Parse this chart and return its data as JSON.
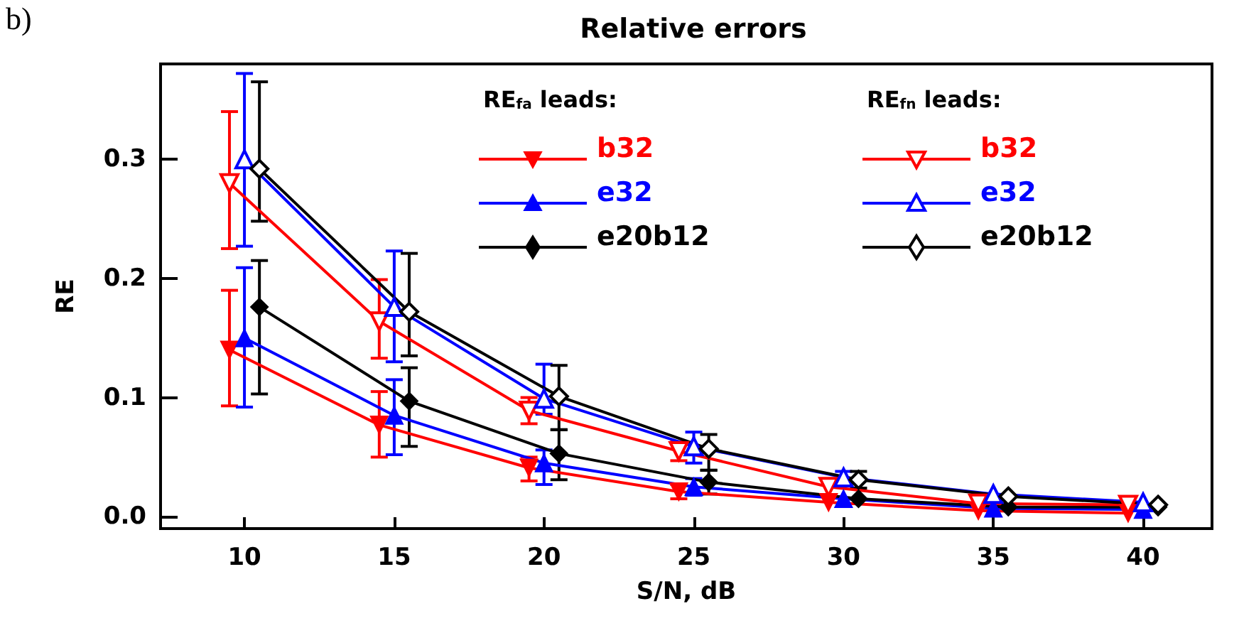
{
  "chart_data": {
    "type": "line",
    "title": "Relative errors",
    "xlabel": "S/N, dB",
    "ylabel": "RE",
    "annotations": [
      "b)",
      "RE$_{fa}$ leads:",
      "RE$_{fn}$ leads:"
    ],
    "xlim": [
      7.2,
      42.3
    ],
    "xticks": [
      10,
      15,
      20,
      25,
      30,
      35,
      40
    ],
    "ylim": [
      -0.01,
      0.38
    ],
    "yticks": [
      {
        "value": 0,
        "label": "0.0"
      },
      {
        "value": 0.1,
        "label": "0.1"
      },
      {
        "value": 0.2,
        "label": "0.2"
      },
      {
        "value": 0.3,
        "label": "0.3"
      }
    ],
    "grid": false,
    "legend": "top",
    "line_style": "solid",
    "series": [
      {
        "name": "b32",
        "color": "#ff0000",
        "marker": "triangle-down",
        "x": [
          9.5,
          14.5,
          19.5,
          24.5,
          29.5,
          34.5,
          39.5
        ],
        "values": [
          0.14,
          0.077,
          0.041,
          0.021,
          0.012,
          0.005,
          0.003
        ],
        "errors": [
          [
            0.093,
            0.19
          ],
          [
            0.05,
            0.105
          ],
          [
            0.03,
            0.05
          ],
          [
            0.015,
            0.027
          ],
          null,
          null,
          null
        ]
      },
      {
        "name": "e32",
        "color": "#0000ff",
        "marker": "triangle",
        "x": [
          10,
          15,
          20,
          25,
          30,
          35,
          40
        ],
        "values": [
          0.15,
          0.085,
          0.045,
          0.025,
          0.015,
          0.007,
          0.006
        ],
        "errors": [
          [
            0.092,
            0.209
          ],
          [
            0.052,
            0.115
          ],
          [
            0.027,
            0.056
          ],
          [
            0.018,
            0.032
          ],
          null,
          null,
          null
        ]
      },
      {
        "name": "e20b12",
        "color": "#000000",
        "marker": "diamond",
        "x": [
          10.5,
          15.5,
          20.5,
          25.5,
          30.5,
          35.5,
          40.5
        ],
        "values": [
          0.176,
          0.097,
          0.053,
          0.029,
          0.015,
          0.008,
          0.008
        ],
        "errors": [
          [
            0.103,
            0.215
          ],
          [
            0.059,
            0.125
          ],
          [
            0.031,
            0.073
          ],
          [
            0.019,
            0.039
          ],
          null,
          null,
          null
        ]
      },
      {
        "name": "b32",
        "color": "#ff0000",
        "marker": "triangle-down-open",
        "x": [
          9.5,
          14.5,
          19.5,
          24.5,
          29.5,
          34.5,
          39.5
        ],
        "values": [
          0.28,
          0.164,
          0.089,
          0.055,
          0.025,
          0.011,
          0.01
        ],
        "errors": [
          [
            0.225,
            0.34
          ],
          [
            0.133,
            0.199
          ],
          [
            0.078,
            0.1
          ],
          [
            0.047,
            0.063
          ],
          null,
          null,
          null
        ]
      },
      {
        "name": "e32",
        "color": "#0000ff",
        "marker": "triangle-open",
        "x": [
          10,
          15,
          20,
          25,
          30,
          35,
          40
        ],
        "values": [
          0.3,
          0.176,
          0.099,
          0.059,
          0.033,
          0.019,
          0.012
        ],
        "errors": [
          [
            0.227,
            0.372
          ],
          [
            0.13,
            0.223
          ],
          [
            0.086,
            0.128
          ],
          [
            0.045,
            0.071
          ],
          [
            0.028,
            0.038
          ],
          null,
          null
        ]
      },
      {
        "name": "e20b12",
        "color": "#000000",
        "marker": "diamond-open",
        "x": [
          10.5,
          15.5,
          20.5,
          25.5,
          30.5,
          35.5,
          40.5
        ],
        "values": [
          0.292,
          0.172,
          0.101,
          0.057,
          0.031,
          0.017,
          0.01
        ],
        "errors": [
          [
            0.248,
            0.365
          ],
          [
            0.135,
            0.221
          ],
          [
            0.073,
            0.127
          ],
          [
            0.039,
            0.069
          ],
          [
            0.024,
            0.038
          ],
          null,
          null
        ]
      }
    ]
  }
}
